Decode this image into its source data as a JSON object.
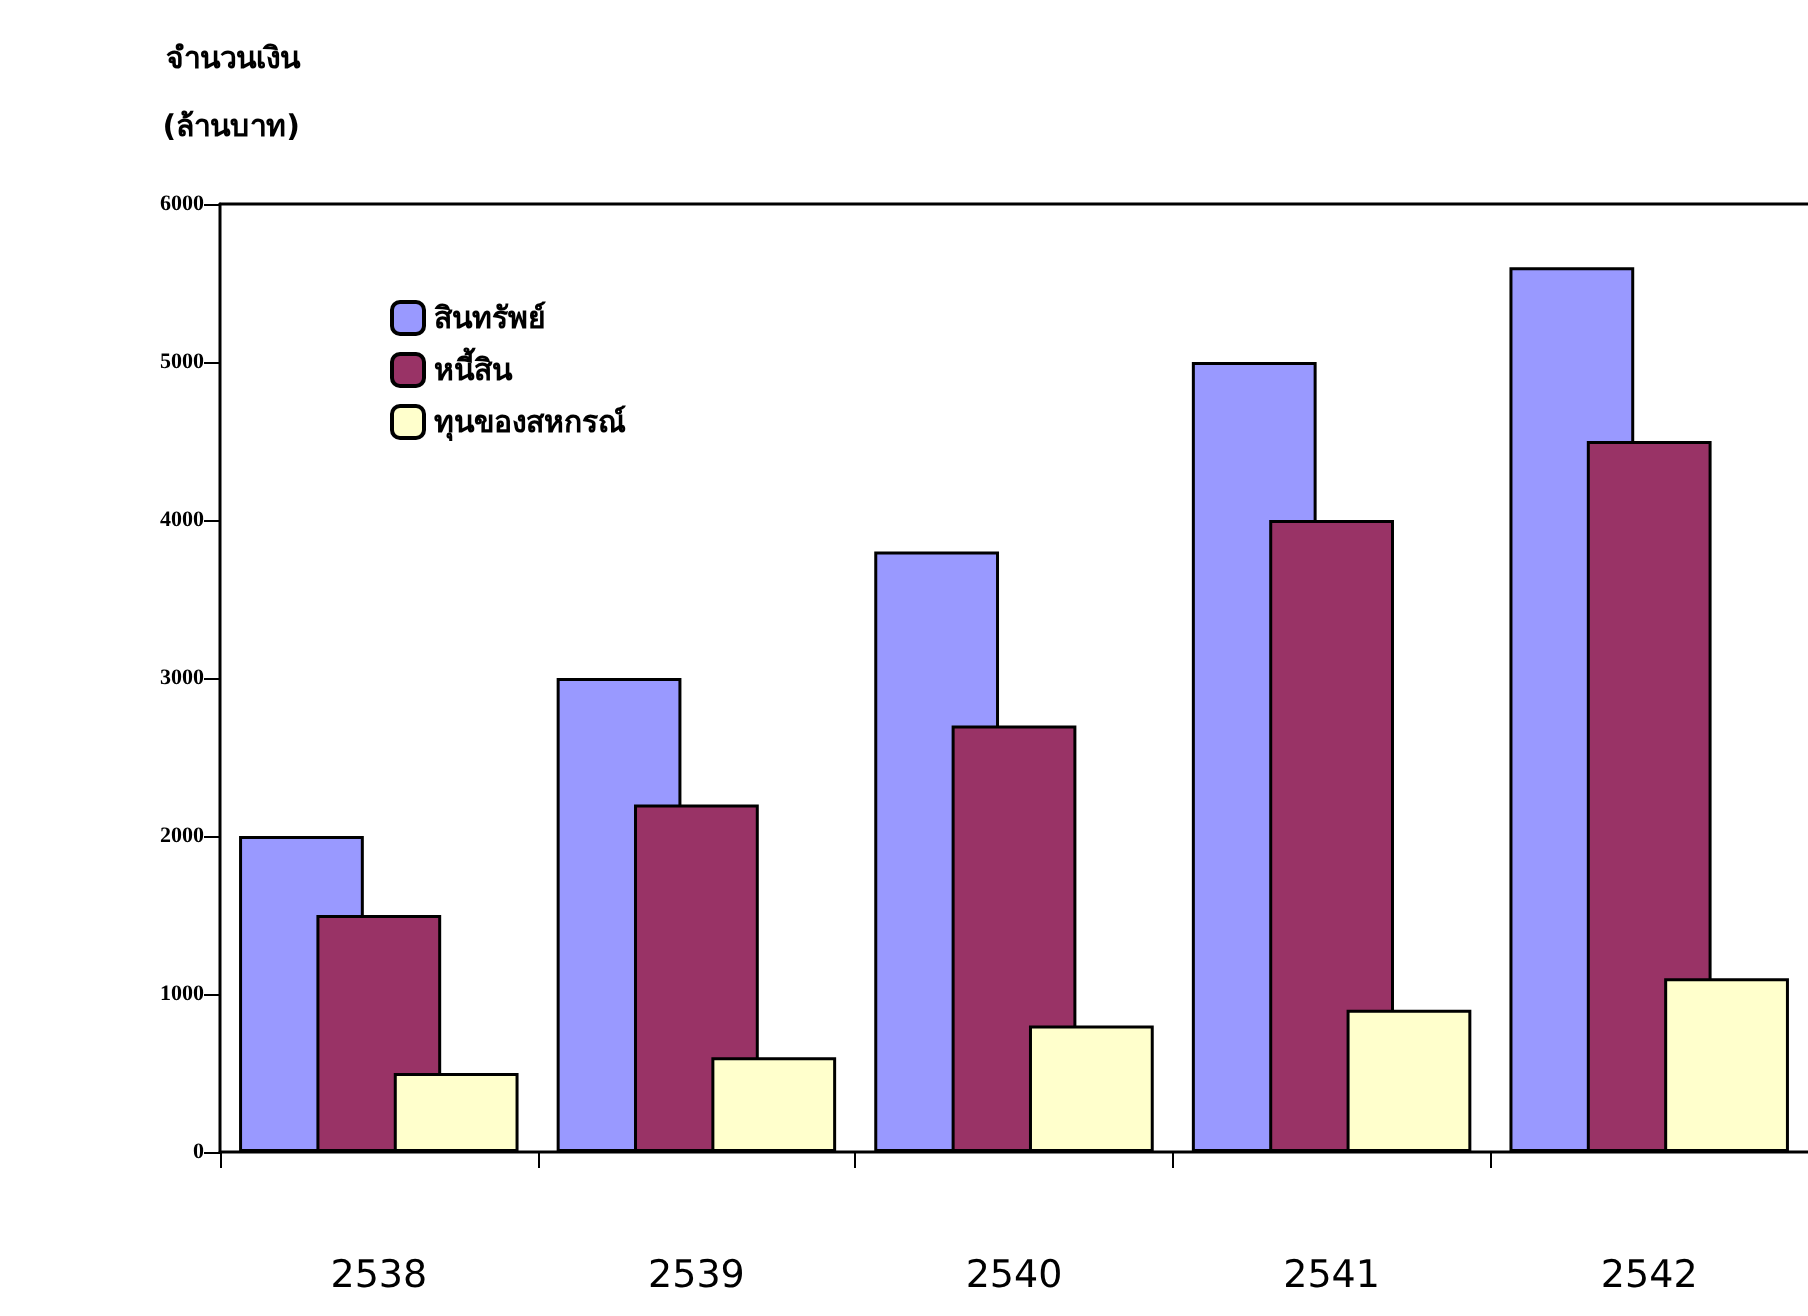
{
  "chart_data": {
    "type": "bar",
    "ylabel": "จำนวนเงิน\n(ล้านบาท)",
    "categories": [
      "2538",
      "2539",
      "2540",
      "2541",
      "2542"
    ],
    "series": [
      {
        "name": "สินทรัพย์",
        "color": "#9999ff",
        "values": [
          2000,
          3000,
          3800,
          5000,
          5600
        ]
      },
      {
        "name": "หนี้สิน",
        "color": "#993366",
        "values": [
          1500,
          2200,
          2700,
          4000,
          4500
        ]
      },
      {
        "name": "ทุนของสหกรณ์",
        "color": "#ffffcc",
        "values": [
          500,
          600,
          800,
          900,
          1100
        ]
      }
    ],
    "ylim": [
      0,
      6000
    ],
    "yticks": [
      0,
      1000,
      2000,
      3000,
      4000,
      5000,
      6000
    ],
    "grid": false,
    "legend": "top left"
  }
}
